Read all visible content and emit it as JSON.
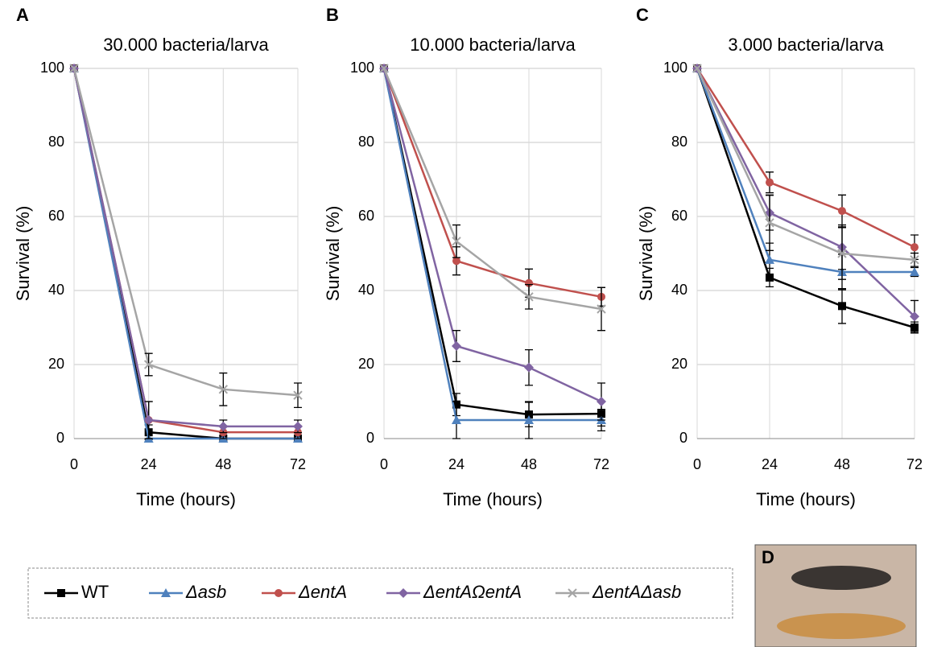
{
  "chart_data": [
    {
      "type": "line",
      "panel": "A",
      "title": "30.000 bacteria/larva",
      "xlabel": "Time (hours)",
      "ylabel": "Survival (%)",
      "x": [
        0,
        24,
        48,
        72
      ],
      "xlim": [
        0,
        72
      ],
      "xticks": [
        0,
        24,
        48,
        72
      ],
      "ylim": [
        0,
        100
      ],
      "yticks": [
        0,
        20,
        40,
        60,
        80,
        100
      ],
      "grid": true,
      "series": [
        {
          "name": "WT",
          "color": "#000000",
          "marker": "square",
          "values": [
            100,
            1.7,
            0,
            0
          ],
          "errors": [
            0,
            2,
            0,
            0
          ]
        },
        {
          "name": "Δasb",
          "color": "#4f81bd",
          "marker": "triangle",
          "values": [
            100,
            0,
            0,
            0
          ],
          "errors": [
            0,
            0,
            0,
            0
          ]
        },
        {
          "name": "ΔentA",
          "color": "#c0504d",
          "marker": "circle",
          "values": [
            100,
            5,
            1.7,
            1.7
          ],
          "errors": [
            0,
            5,
            1.7,
            1.7
          ]
        },
        {
          "name": "ΔentAΩentA",
          "color": "#8064a2",
          "marker": "diamond",
          "values": [
            100,
            5,
            3.3,
            3.3
          ],
          "errors": [
            0,
            5,
            1.7,
            1.7
          ]
        },
        {
          "name": "ΔentAΔasb",
          "color": "#a5a5a5",
          "marker": "cross",
          "values": [
            100,
            20,
            13.3,
            11.7
          ],
          "errors": [
            0,
            3,
            4.4,
            3.3
          ]
        }
      ]
    },
    {
      "type": "line",
      "panel": "B",
      "title": "10.000 bacteria/larva",
      "xlabel": "Time (hours)",
      "ylabel": "Survival (%)",
      "x": [
        0,
        24,
        48,
        72
      ],
      "xlim": [
        0,
        72
      ],
      "xticks": [
        0,
        24,
        48,
        72
      ],
      "ylim": [
        0,
        100
      ],
      "yticks": [
        0,
        20,
        40,
        60,
        80,
        100
      ],
      "grid": true,
      "series": [
        {
          "color": "#000000",
          "marker": "square",
          "values": [
            100,
            9.2,
            6.5,
            6.7
          ],
          "errors": [
            0,
            3,
            3.3,
            3.3
          ]
        },
        {
          "color": "#4f81bd",
          "marker": "triangle",
          "values": [
            100,
            5,
            5,
            5
          ],
          "errors": [
            0,
            5,
            5,
            2.9
          ]
        },
        {
          "color": "#c0504d",
          "marker": "circle",
          "values": [
            100,
            48,
            42,
            38.3
          ],
          "errors": [
            0,
            3.8,
            3.8,
            2.5
          ]
        },
        {
          "color": "#8064a2",
          "marker": "diamond",
          "values": [
            100,
            25,
            19.2,
            10
          ],
          "errors": [
            0,
            4.2,
            4.8,
            5
          ]
        },
        {
          "color": "#a5a5a5",
          "marker": "cross",
          "values": [
            100,
            53.3,
            38.3,
            35
          ],
          "errors": [
            0,
            4.4,
            3.3,
            5.8
          ]
        }
      ]
    },
    {
      "type": "line",
      "panel": "C",
      "title": "3.000 bacteria/larva",
      "xlabel": "Time (hours)",
      "ylabel": "Survival (%)",
      "x": [
        0,
        24,
        48,
        72
      ],
      "xlim": [
        0,
        72
      ],
      "xticks": [
        0,
        24,
        48,
        72
      ],
      "ylim": [
        0,
        100
      ],
      "yticks": [
        0,
        20,
        40,
        60,
        80,
        100
      ],
      "grid": true,
      "series": [
        {
          "color": "#000000",
          "marker": "square",
          "values": [
            100,
            43.5,
            35.8,
            30
          ],
          "errors": [
            0,
            2.5,
            4.7,
            1.5
          ]
        },
        {
          "color": "#4f81bd",
          "marker": "triangle",
          "values": [
            100,
            48.3,
            45,
            45
          ],
          "errors": [
            0,
            4.5,
            4.8,
            1.2
          ]
        },
        {
          "color": "#c0504d",
          "marker": "circle",
          "values": [
            100,
            69.2,
            61.5,
            51.7
          ],
          "errors": [
            0,
            2.8,
            4.3,
            3.3
          ]
        },
        {
          "color": "#8064a2",
          "marker": "diamond",
          "values": [
            100,
            61,
            51.7,
            33
          ],
          "errors": [
            0,
            4.7,
            6,
            4.3
          ]
        },
        {
          "color": "#a5a5a5",
          "marker": "cross",
          "values": [
            100,
            58.3,
            50,
            48.3
          ],
          "errors": [
            0,
            7.5,
            7,
            1.8
          ]
        }
      ]
    }
  ],
  "photo": {
    "label": "D"
  }
}
